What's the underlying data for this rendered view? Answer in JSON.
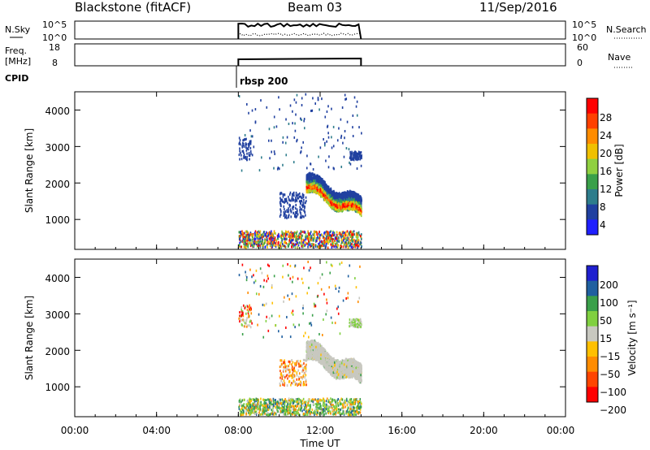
{
  "header": {
    "station": "Blackstone (fitACF)",
    "beam": "Beam 03",
    "date": "11/Sep/2016"
  },
  "summary_panels": {
    "nsky": {
      "label": "N.Sky",
      "right_label": "N.Search",
      "left_ticks": [
        "10^5",
        "10^0"
      ],
      "right_ticks": [
        "10^5",
        "10^0"
      ]
    },
    "freq": {
      "label_line1": "Freq.",
      "label_line2": "[MHz]",
      "right_label": "Nave",
      "left_ticks": [
        "18",
        "8"
      ],
      "right_ticks": [
        "60",
        "0"
      ]
    },
    "cpid": {
      "label": "CPID",
      "value": "rbsp 200"
    }
  },
  "x_axis": {
    "label": "Time UT",
    "ticks": [
      "00:00",
      "04:00",
      "08:00",
      "12:00",
      "16:00",
      "20:00",
      "00:00"
    ]
  },
  "colors": {
    "power": [
      "#1f1fff",
      "#2040a0",
      "#2e7d8c",
      "#3aa04a",
      "#90d040",
      "#f0c000",
      "#ff8c00",
      "#ff4000",
      "#ff0000"
    ],
    "velocity": [
      "#ff0000",
      "#ff4500",
      "#ff8c00",
      "#ffc000",
      "#c8c8c0",
      "#80d040",
      "#3aa04a",
      "#2060a0",
      "#1f1fcf"
    ]
  },
  "chart_data": [
    {
      "type": "heatmap",
      "title": "",
      "xlabel": "",
      "ylabel": "Slant Range [km]",
      "xlim": [
        0,
        24
      ],
      "ylim": [
        180,
        4500
      ],
      "yticks": [
        "1000",
        "2000",
        "3000",
        "4000"
      ],
      "colorbar": {
        "label": "Power [dB]",
        "range": [
          0,
          32
        ],
        "ticks": [
          "4",
          "8",
          "12",
          "16",
          "20",
          "24",
          "28"
        ]
      },
      "data_window_hours": [
        8.0,
        14.0
      ]
    },
    {
      "type": "heatmap",
      "title": "",
      "xlabel": "Time UT",
      "ylabel": "Slant Range [km]",
      "xlim": [
        0,
        24
      ],
      "ylim": [
        180,
        4500
      ],
      "yticks": [
        "1000",
        "2000",
        "3000",
        "4000"
      ],
      "colorbar": {
        "label": "Velocity [m s⁻¹]",
        "range_levels": 9,
        "ticks": [
          "200",
          "100",
          "50",
          "15",
          "−15",
          "−50",
          "−100",
          "−200"
        ]
      },
      "data_window_hours": [
        8.0,
        14.0
      ]
    }
  ]
}
